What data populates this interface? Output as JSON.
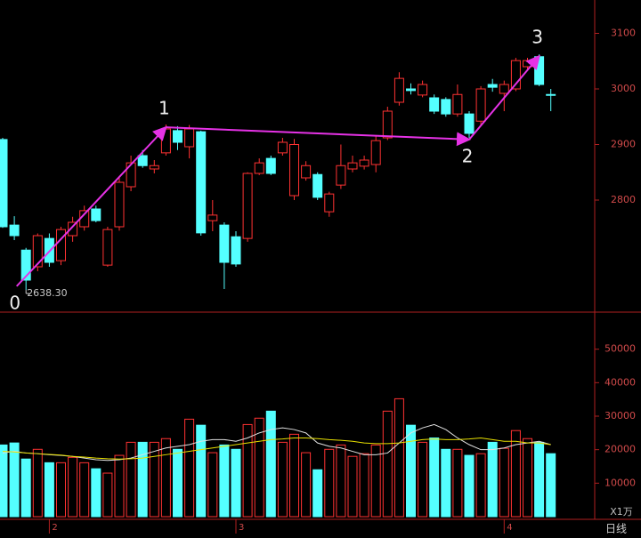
{
  "chart_data": {
    "type": "candlestick",
    "categories": [
      null,
      null,
      null,
      null,
      "2",
      null,
      null,
      null,
      null,
      null,
      null,
      null,
      null,
      null,
      null,
      null,
      null,
      null,
      null,
      null,
      "3",
      null,
      null,
      null,
      null,
      null,
      null,
      null,
      null,
      null,
      null,
      null,
      null,
      null,
      null,
      null,
      null,
      null,
      null,
      null,
      null,
      null,
      null,
      "4",
      null,
      null,
      null,
      null
    ],
    "open": [
      2909,
      2755,
      2710,
      2680,
      2731,
      2691,
      2736,
      2752,
      2784,
      2683,
      2752,
      2824,
      2880,
      2856,
      2885,
      2925,
      2896,
      2923,
      2763,
      2755,
      2734,
      2731,
      2848,
      2875,
      2885,
      2808,
      2840,
      2846,
      2779,
      2827,
      2856,
      2861,
      2864,
      2912,
      2976,
      3000,
      2989,
      2984,
      2981,
      2955,
      2955,
      2942,
      3008,
      2992,
      3000,
      3040,
      3058,
      2990
    ],
    "high": [
      2912,
      2771,
      2714,
      2740,
      2740,
      2752,
      2770,
      2790,
      2790,
      2752,
      2840,
      2880,
      2890,
      2872,
      2936,
      2933,
      2935,
      2925,
      2800,
      2760,
      2744,
      2850,
      2875,
      2880,
      2912,
      2910,
      2870,
      2850,
      2815,
      2900,
      2880,
      2880,
      2915,
      2968,
      3030,
      3010,
      3015,
      2990,
      2985,
      3008,
      2960,
      3005,
      3018,
      3015,
      3056,
      3056,
      3062,
      3000
    ],
    "low": [
      2750,
      2728,
      2638.3,
      2672,
      2680,
      2683,
      2725,
      2745,
      2760,
      2680,
      2745,
      2816,
      2858,
      2848,
      2880,
      2890,
      2875,
      2736,
      2744,
      2640,
      2680,
      2725,
      2845,
      2845,
      2880,
      2800,
      2835,
      2800,
      2770,
      2820,
      2850,
      2855,
      2850,
      2908,
      2970,
      2990,
      2985,
      2955,
      2950,
      2950,
      2912,
      2935,
      2995,
      2960,
      2996,
      3035,
      3005,
      2960
    ],
    "close": [
      2752,
      2736,
      2656,
      2736,
      2688,
      2747,
      2760,
      2781,
      2763,
      2747,
      2832,
      2867,
      2862,
      2862,
      2928,
      2904,
      2928,
      2741,
      2773,
      2688,
      2685,
      2848,
      2867,
      2848,
      2904,
      2900,
      2862,
      2805,
      2811,
      2862,
      2867,
      2872,
      2907,
      2960,
      3019,
      2997,
      3008,
      2960,
      2955,
      2990,
      2920,
      3000,
      3003,
      3008,
      3051,
      3051,
      3008,
      2989
    ],
    "volume": [
      21400,
      22000,
      17200,
      20100,
      16100,
      16100,
      17700,
      16100,
      14300,
      13000,
      18300,
      22200,
      22200,
      22200,
      23300,
      20100,
      29100,
      27300,
      19100,
      21400,
      20100,
      27500,
      29400,
      31500,
      22200,
      24600,
      19100,
      14000,
      20100,
      21400,
      18000,
      18800,
      21400,
      31500,
      35200,
      27300,
      22200,
      23500,
      20100,
      20100,
      18300,
      18800,
      22200,
      20400,
      25700,
      23300,
      22200,
      18800
    ],
    "up_color": "#ff3232",
    "down_color": "#54ffff",
    "volume_ma": [
      {
        "color": "#e0e0e0",
        "values": [
          19000,
          19500,
          19000,
          18800,
          18500,
          18300,
          18000,
          17500,
          17000,
          16800,
          17000,
          17500,
          18500,
          19500,
          20500,
          21000,
          21500,
          22500,
          23000,
          23000,
          22500,
          23500,
          25000,
          26000,
          26500,
          26000,
          25000,
          22000,
          21000,
          20500,
          19500,
          18500,
          18500,
          19000,
          22000,
          25000,
          26500,
          27500,
          26000,
          23500,
          21500,
          20000,
          20000,
          20500,
          21500,
          22000,
          22500,
          21500
        ]
      },
      {
        "color": "#e8e000",
        "values": [
          19500,
          19300,
          19000,
          18800,
          18600,
          18400,
          18000,
          17800,
          17500,
          17300,
          17200,
          17300,
          17500,
          18000,
          18500,
          19000,
          19500,
          20000,
          20500,
          21000,
          21500,
          22000,
          22500,
          23000,
          23200,
          23500,
          23500,
          23300,
          23000,
          22800,
          22500,
          22000,
          21800,
          21800,
          22000,
          22500,
          23000,
          23200,
          23000,
          23000,
          23200,
          23500,
          23000,
          22500,
          22500,
          22000,
          22000,
          21500
        ]
      }
    ],
    "ylim": [
      2600,
      3160
    ],
    "yticks": [
      2800,
      2900,
      3000,
      3100
    ],
    "y2lim": [
      0,
      60000
    ],
    "y2ticks": [
      10000,
      20000,
      30000,
      40000,
      50000
    ],
    "low_marker": {
      "index": 2,
      "label": "2638.30"
    },
    "wave": {
      "x": [
        1.2,
        14,
        40,
        46
      ],
      "y": [
        2645,
        2931,
        2909,
        3059
      ],
      "labels": [
        "0",
        "1",
        "2",
        "3"
      ],
      "color": "#e632e6"
    },
    "volume_unit": "X1万",
    "period": "日线"
  }
}
